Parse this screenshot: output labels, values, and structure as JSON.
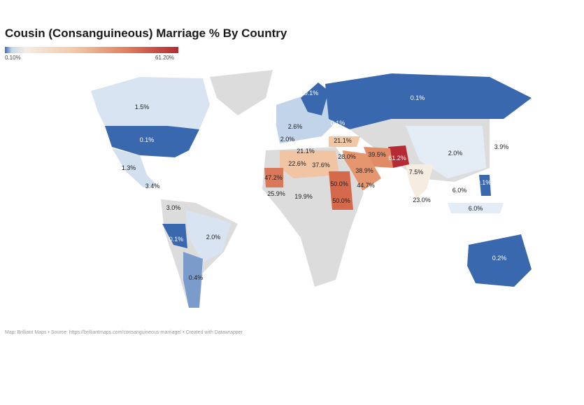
{
  "title": "Cousin (Consanguineous) Marriage % By Country",
  "legend": {
    "min_label": "0.10%",
    "max_label": "61.20%",
    "min_color": "#3b6cb0",
    "max_color": "#b52a33",
    "no_data_color": "#dcdcdc"
  },
  "labels": {
    "russia": "0.1%",
    "canada": "1.5%",
    "usa": "0.1%",
    "sweden": "0.1%",
    "ukraine": "0.1%",
    "france": "2.6%",
    "spain": "2.0%",
    "turkey": "21.1%",
    "tunisia": "21.1%",
    "algeria": "22.6%",
    "libya": "37.6%",
    "iraq": "28.0%",
    "iran": "39.5%",
    "pakistan": "61.2%",
    "saudi": "38.9%",
    "india": "7.5%",
    "mauritania": "47.2%",
    "sudan": "50.0%",
    "yemen": "44.7%",
    "west_africa": "25.9%",
    "nigeria": "19.9%",
    "south_sudan": "50.0%",
    "sri_lanka": "23.0%",
    "china": "2.0%",
    "japan": "3.9%",
    "thailand": "6.0%",
    "indonesia": "6.0%",
    "philippines": "0.1%",
    "mexico": "1.3%",
    "central_america": "3.4%",
    "colombia": "3.0%",
    "peru": "0.1%",
    "brazil": "2.0%",
    "argentina": "0.4%",
    "australia": "0.2%"
  },
  "footer": "Map: Brilliant Maps • Source: https://brilliantmaps.com/consanguineous-marriage/ • Created with Datawrapper"
}
